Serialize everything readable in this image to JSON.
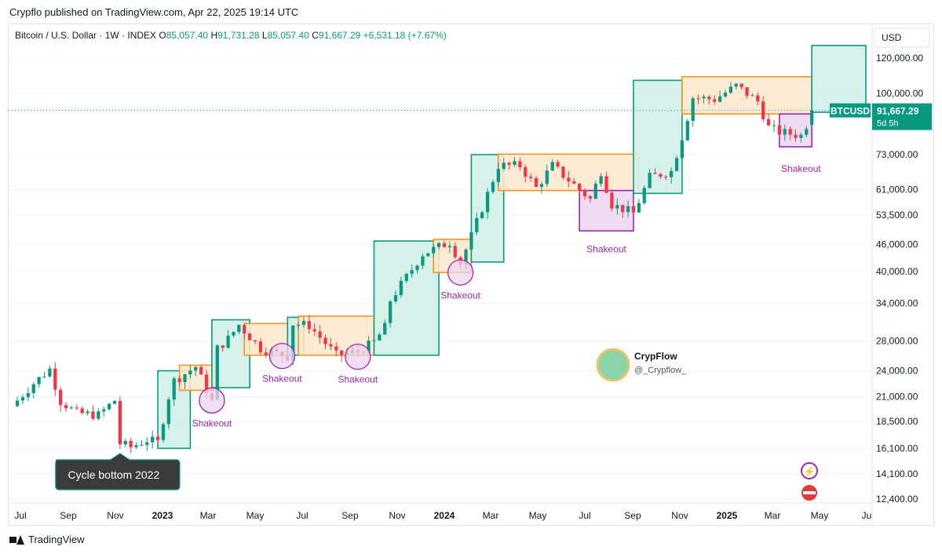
{
  "header": {
    "publisher_line": "Crypflo published on TradingView.com, Apr 22, 2025 19:14 UTC"
  },
  "symbol_bar": {
    "name": "Bitcoin / U.S. Dollar · 1W · INDEX",
    "o_label": "O",
    "o_value": "85,057.40",
    "h_label": "H",
    "h_value": "91,731.28",
    "l_label": "L",
    "l_value": "85,057.40",
    "c_label": "C",
    "c_value": "91,667.29",
    "change": "+6,531.18 (+7.67%)"
  },
  "currency_label": "USD",
  "price_tag": {
    "ticker": "BTCUSD",
    "price": "91,667.29",
    "countdown": "5d 5h"
  },
  "footer": {
    "brand": "TradingView"
  },
  "watermark": {
    "name": "CrypFlow",
    "handle": "@_Crypflow_"
  },
  "chart_data": {
    "type": "candlestick",
    "timeframe": "1W",
    "y_scale": "log",
    "y_ticks": [
      12400,
      14100,
      16100,
      18500,
      21000,
      24000,
      28000,
      34000,
      40000,
      46000,
      53500,
      61000,
      73000,
      100000,
      120000
    ],
    "y_tick_labels": [
      "12,400.00",
      "14,100.00",
      "16,100.00",
      "18,500.00",
      "21,000.00",
      "24,000.00",
      "28,000.00",
      "34,000.00",
      "40,000.00",
      "46,000.00",
      "53,500.00",
      "61,000.00",
      "73,000.00",
      "100,000.00",
      "120,000.00"
    ],
    "x_labels": [
      {
        "label": "Jul",
        "date": "2022-07-01",
        "bold": false
      },
      {
        "label": "Sep",
        "date": "2022-09-01",
        "bold": false
      },
      {
        "label": "Nov",
        "date": "2022-11-01",
        "bold": false
      },
      {
        "label": "2023",
        "date": "2023-01-01",
        "bold": true
      },
      {
        "label": "Mar",
        "date": "2023-03-01",
        "bold": false
      },
      {
        "label": "May",
        "date": "2023-05-01",
        "bold": false
      },
      {
        "label": "Jul",
        "date": "2023-07-01",
        "bold": false
      },
      {
        "label": "Sep",
        "date": "2023-09-01",
        "bold": false
      },
      {
        "label": "Nov",
        "date": "2023-11-01",
        "bold": false
      },
      {
        "label": "2024",
        "date": "2024-01-01",
        "bold": true
      },
      {
        "label": "Mar",
        "date": "2024-03-01",
        "bold": false
      },
      {
        "label": "May",
        "date": "2024-05-01",
        "bold": false
      },
      {
        "label": "Jul",
        "date": "2024-07-01",
        "bold": false
      },
      {
        "label": "Sep",
        "date": "2024-09-01",
        "bold": false
      },
      {
        "label": "Nov",
        "date": "2024-11-01",
        "bold": false
      },
      {
        "label": "2025",
        "date": "2025-01-01",
        "bold": true
      },
      {
        "label": "Mar",
        "date": "2025-03-01",
        "bold": false
      },
      {
        "label": "May",
        "date": "2025-05-01",
        "bold": false
      },
      {
        "label": "Ju",
        "date": "2025-07-01",
        "bold": false
      }
    ],
    "price_anchors": [
      [
        "2022-06-20",
        20000
      ],
      [
        "2022-07-18",
        22500
      ],
      [
        "2022-08-08",
        24200
      ],
      [
        "2022-08-22",
        20500
      ],
      [
        "2022-09-12",
        19300
      ],
      [
        "2022-10-10",
        19100
      ],
      [
        "2022-10-31",
        20600
      ],
      [
        "2022-11-07",
        16500
      ],
      [
        "2022-11-21",
        16200
      ],
      [
        "2022-12-12",
        16800
      ],
      [
        "2022-12-26",
        16600
      ],
      [
        "2023-01-09",
        21000
      ],
      [
        "2023-01-16",
        22800
      ],
      [
        "2023-02-13",
        24500
      ],
      [
        "2023-03-06",
        20500
      ],
      [
        "2023-03-13",
        26900
      ],
      [
        "2023-03-27",
        28300
      ],
      [
        "2023-04-10",
        30400
      ],
      [
        "2023-05-08",
        26900
      ],
      [
        "2023-06-12",
        25800
      ],
      [
        "2023-06-19",
        30600
      ],
      [
        "2023-07-10",
        30300
      ],
      [
        "2023-08-14",
        26000
      ],
      [
        "2023-09-11",
        26500
      ],
      [
        "2023-10-02",
        27800
      ],
      [
        "2023-10-16",
        30000
      ],
      [
        "2023-10-23",
        34500
      ],
      [
        "2023-12-04",
        43800
      ],
      [
        "2024-01-08",
        46500
      ],
      [
        "2024-01-22",
        41800
      ],
      [
        "2024-02-12",
        51500
      ],
      [
        "2024-03-11",
        69000
      ],
      [
        "2024-04-08",
        69000
      ],
      [
        "2024-04-29",
        61500
      ],
      [
        "2024-05-20",
        69000
      ],
      [
        "2024-06-24",
        61000
      ],
      [
        "2024-07-08",
        58000
      ],
      [
        "2024-07-22",
        67000
      ],
      [
        "2024-08-05",
        56500
      ],
      [
        "2024-09-02",
        54000
      ],
      [
        "2024-09-23",
        65000
      ],
      [
        "2024-10-21",
        67000
      ],
      [
        "2024-11-04",
        80000
      ],
      [
        "2024-11-18",
        98000
      ],
      [
        "2024-12-16",
        97000
      ],
      [
        "2025-01-13",
        104000
      ],
      [
        "2025-02-10",
        96000
      ],
      [
        "2025-02-24",
        84000
      ],
      [
        "2025-03-10",
        82000
      ],
      [
        "2025-04-07",
        80500
      ],
      [
        "2025-04-14",
        85057.4
      ],
      [
        "2025-04-21",
        91667.29
      ]
    ],
    "last_candle": {
      "open": 85057.4,
      "high": 91731.28,
      "low": 85057.4,
      "close": 91667.29
    },
    "zones": [
      {
        "kind": "impulse",
        "from": "2022-12-26",
        "to": "2023-02-06",
        "low": 16100,
        "high": 24000
      },
      {
        "kind": "range",
        "from": "2023-01-23",
        "to": "2023-03-13",
        "low": 21700,
        "high": 24700
      },
      {
        "kind": "impulse",
        "from": "2023-03-06",
        "to": "2023-04-24",
        "low": 22000,
        "high": 31200
      },
      {
        "kind": "range",
        "from": "2023-04-17",
        "to": "2023-07-03",
        "low": 26000,
        "high": 30600
      },
      {
        "kind": "impulse",
        "from": "2023-06-12",
        "to": "2023-07-03",
        "low": 26000,
        "high": 31600
      },
      {
        "kind": "range",
        "from": "2023-06-26",
        "to": "2023-10-02",
        "low": 26000,
        "high": 31800
      },
      {
        "kind": "impulse",
        "from": "2023-10-02",
        "to": "2023-12-25",
        "low": 26000,
        "high": 46800
      },
      {
        "kind": "range",
        "from": "2023-12-18",
        "to": "2024-02-05",
        "low": 39800,
        "high": 47200
      },
      {
        "kind": "impulse",
        "from": "2024-02-05",
        "to": "2024-03-18",
        "low": 42000,
        "high": 73000
      },
      {
        "kind": "range",
        "from": "2024-03-11",
        "to": "2024-09-09",
        "low": 60700,
        "high": 73200
      },
      {
        "kind": "shakeout",
        "from": "2024-06-24",
        "to": "2024-09-02",
        "low": 49300,
        "high": 60700
      },
      {
        "kind": "impulse",
        "from": "2024-09-02",
        "to": "2024-11-04",
        "low": 59800,
        "high": 107000
      },
      {
        "kind": "range",
        "from": "2024-11-04",
        "to": "2025-04-21",
        "low": 90000,
        "high": 109000
      },
      {
        "kind": "shakeout",
        "from": "2025-03-10",
        "to": "2025-04-21",
        "low": 76000,
        "high": 90000
      },
      {
        "kind": "impulse",
        "from": "2025-04-21",
        "to": "2025-06-30",
        "low": 90800,
        "high": 128000
      }
    ],
    "shakeouts": [
      {
        "label": "Shakeout",
        "date": "2023-03-06",
        "price": 20600
      },
      {
        "label": "Shakeout",
        "date": "2023-06-05",
        "price": 25900
      },
      {
        "label": "Shakeout",
        "date": "2023-09-11",
        "price": 25800
      },
      {
        "label": "Shakeout",
        "date": "2024-01-22",
        "price": 39800
      }
    ],
    "zone_labels": [
      {
        "label": "Shakeout",
        "date": "2024-07-29",
        "price": 46500
      },
      {
        "label": "Shakeout",
        "date": "2025-04-07",
        "price": 70400
      }
    ],
    "callout": {
      "label": "Cycle bottom 2022",
      "date": "2022-11-07",
      "price": 15800
    },
    "last_price_line": 91667.29,
    "colors": {
      "up": "#089981",
      "down": "#f23645",
      "impulse_fill": "#d2efe7",
      "impulse_stroke": "#089981",
      "range_fill": "#ffe8cc",
      "range_stroke": "#f7941d",
      "shakeout_fill": "#ecd5f0",
      "shakeout_stroke": "#9c27b0",
      "axis_text": "#131722",
      "grid": "#f0f3fa"
    }
  }
}
